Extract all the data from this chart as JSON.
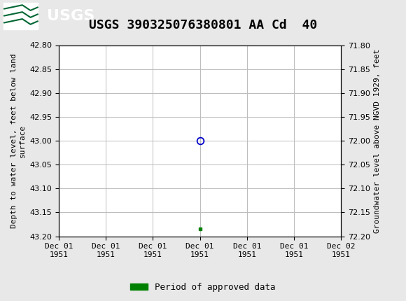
{
  "title": "USGS 390325076380801 AA Cd  40",
  "left_ylabel": "Depth to water level, feet below land\nsurface",
  "right_ylabel": "Groundwater level above NGVD 1929, feet",
  "ylim_left": [
    42.8,
    43.2
  ],
  "ylim_right": [
    72.2,
    71.8
  ],
  "yticks_left": [
    42.8,
    42.85,
    42.9,
    42.95,
    43.0,
    43.05,
    43.1,
    43.15,
    43.2
  ],
  "yticks_right": [
    72.2,
    72.15,
    72.1,
    72.05,
    72.0,
    71.95,
    71.9,
    71.85,
    71.8
  ],
  "data_point_blue_x": 12.0,
  "data_point_blue_y": 43.0,
  "data_point_green_x": 12.0,
  "data_point_green_y": 43.185,
  "xlim": [
    0,
    24
  ],
  "xtick_positions": [
    0,
    4,
    8,
    12,
    16,
    20,
    24
  ],
  "xtick_labels": [
    "Dec 01\n1951",
    "Dec 01\n1951",
    "Dec 01\n1951",
    "Dec 01\n1951",
    "Dec 01\n1951",
    "Dec 01\n1951",
    "Dec 02\n1951"
  ],
  "circle_color": "#0000cc",
  "green_color": "#008000",
  "approved_label": "Period of approved data",
  "header_color": "#006633",
  "background_color": "#e8e8e8",
  "plot_bg_color": "#ffffff",
  "grid_color": "#bbbbbb",
  "title_fontsize": 13,
  "axis_label_fontsize": 8,
  "tick_fontsize": 8,
  "legend_fontsize": 9
}
